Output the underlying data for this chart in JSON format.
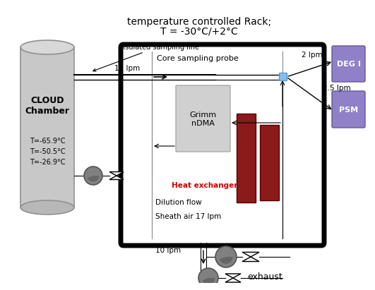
{
  "title_line1": "temperature controlled Rack;",
  "title_line2": "T = -30°C/+2°C",
  "cloud_chamber_label": "CLOUD\nChamber",
  "cloud_temps": "T=-65.9°C\nT=-50.5°C\nT=-26.9°C",
  "insulated_label": "Insulated sampling line",
  "core_probe_label": "Core sampling probe",
  "grimm_label": "Grimm\nnDMA",
  "heat_exchanger_label": "Heat exchanger",
  "dilution_label": "Dilution flow",
  "sheath_label": "Sheath air 17 lpm",
  "flow_12": "12 lpm",
  "flow_2": "2 lpm",
  "flow_25": "2.5 lpm",
  "flow_10": "10 lpm",
  "deg_label": "DEG I",
  "psm_label": "PSM",
  "exhaust_label": "exhaust",
  "bg_color": "#ffffff",
  "rack_box_color": "#000000",
  "cloud_chamber_color": "#c8c8c8",
  "grimm_box_color": "#d0d0d0",
  "heat_bar_color": "#8b1a1a",
  "deg_box_color": "#9080c8",
  "psm_box_color": "#9080c8",
  "pump_color": "#808080",
  "valve_color": "#f0f0f0",
  "connector_color": "#88bbee",
  "heat_text_color": "#cc0000",
  "arrow_color": "#000000",
  "line_color": "#888888"
}
